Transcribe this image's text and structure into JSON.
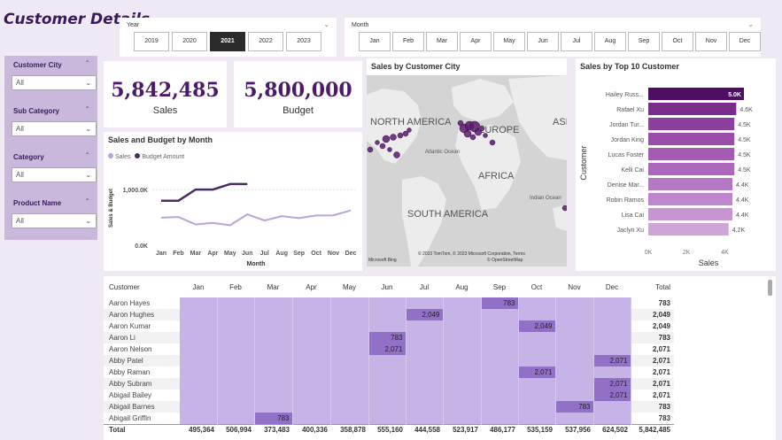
{
  "page": {
    "title": "Customer Details"
  },
  "year_slicer": {
    "label": "Year",
    "options": [
      "2019",
      "2020",
      "2021",
      "2022",
      "2023"
    ],
    "selected": "2021"
  },
  "month_slicer": {
    "label": "Month",
    "options": [
      "Jan",
      "Feb",
      "Mar",
      "Apr",
      "May",
      "Jun",
      "Jul",
      "Aug",
      "Sep",
      "Oct",
      "Nov",
      "Dec"
    ]
  },
  "filters": [
    {
      "label": "Customer City",
      "value": "All"
    },
    {
      "label": "Sub Category",
      "value": "All"
    },
    {
      "label": "Category",
      "value": "All"
    },
    {
      "label": "Product Name",
      "value": "All"
    }
  ],
  "kpis": {
    "sales": {
      "value": "5,842,485",
      "label": "Sales"
    },
    "budget": {
      "value": "5,800,000",
      "label": "Budget"
    }
  },
  "line_chart": {
    "title": "Sales and Budget by Month",
    "legend": [
      {
        "name": "Sales",
        "color": "#b9a3d9"
      },
      {
        "name": "Budget Amount",
        "color": "#4b2a6b"
      }
    ]
  },
  "map": {
    "title": "Sales by Customer City",
    "labels": [
      "NORTH AMERICA",
      "EUROPE",
      "AFRICA",
      "SOUTH AMERICA",
      "ASI",
      "Atlantic Ocean",
      "Indian Ocean"
    ],
    "attribution": "© 2023 TomTom, © 2023 Microsoft Corporation, Terms",
    "attribution2": "© OpenStreetMap",
    "logo": "Microsoft Bing"
  },
  "bar_chart": {
    "title": "Sales by Top 10 Customer"
  },
  "chart_data": [
    {
      "type": "line",
      "title": "Sales and Budget by Month",
      "xlabel": "Month",
      "ylabel": "Sales & Budget",
      "categories": [
        "Jan",
        "Feb",
        "Mar",
        "Apr",
        "May",
        "Jun",
        "Jul",
        "Aug",
        "Sep",
        "Oct",
        "Nov",
        "Dec"
      ],
      "yticks": [
        "0.0K",
        "1,000.0K"
      ],
      "ylim": [
        0,
        1400000
      ],
      "series": [
        {
          "name": "Sales",
          "color": "#b9a3d9",
          "values": [
            495364,
            506994,
            373483,
            400336,
            358878,
            555160,
            444558,
            523917,
            486177,
            535159,
            537956,
            624502
          ]
        },
        {
          "name": "Budget Amount",
          "color": "#4b2a6b",
          "values": [
            800000,
            800000,
            1000000,
            1000000,
            1100000,
            1100000,
            null,
            null,
            null,
            null,
            null,
            null
          ]
        }
      ]
    },
    {
      "type": "bar",
      "title": "Sales by Top 10 Customer",
      "xlabel": "Sales",
      "ylabel": "Customer",
      "categories": [
        "Hailey Russ...",
        "Rafael Xu",
        "Jordan Tur...",
        "Jordan King",
        "Lucas Foster",
        "Kelli Cai",
        "Denise Mar...",
        "Robin Ramos",
        "Lisa Cai",
        "Jaclyn Xu"
      ],
      "labels": [
        "5.0K",
        "4.6K",
        "4.5K",
        "4.5K",
        "4.5K",
        "4.5K",
        "4.4K",
        "4.4K",
        "4.4K",
        "4.2K"
      ],
      "values": [
        5000,
        4600,
        4500,
        4500,
        4500,
        4500,
        4400,
        4400,
        4400,
        4200
      ],
      "xticks": [
        "0K",
        "2K",
        "4K"
      ],
      "xlim": [
        0,
        5000
      ]
    },
    {
      "type": "table",
      "title": "Customer matrix",
      "columns": [
        "Customer",
        "Jan",
        "Feb",
        "Mar",
        "Apr",
        "May",
        "Jun",
        "Jul",
        "Aug",
        "Sep",
        "Oct",
        "Nov",
        "Dec",
        "Total"
      ],
      "rows": [
        {
          "name": "Aaron Hayes",
          "cells": [
            "",
            "",
            "",
            "",
            "",
            "",
            "",
            "",
            "783",
            "",
            "",
            ""
          ],
          "total": "783"
        },
        {
          "name": "Aaron Hughes",
          "cells": [
            "",
            "",
            "",
            "",
            "",
            "",
            "2,049",
            "",
            "",
            "",
            "",
            ""
          ],
          "total": "2,049"
        },
        {
          "name": "Aaron Kumar",
          "cells": [
            "",
            "",
            "",
            "",
            "",
            "",
            "",
            "",
            "",
            "2,049",
            "",
            ""
          ],
          "total": "2,049"
        },
        {
          "name": "Aaron Li",
          "cells": [
            "",
            "",
            "",
            "",
            "",
            "783",
            "",
            "",
            "",
            "",
            "",
            ""
          ],
          "total": "783"
        },
        {
          "name": "Aaron Nelson",
          "cells": [
            "",
            "",
            "",
            "",
            "",
            "2,071",
            "",
            "",
            "",
            "",
            "",
            ""
          ],
          "total": "2,071"
        },
        {
          "name": "Abby Patel",
          "cells": [
            "",
            "",
            "",
            "",
            "",
            "",
            "",
            "",
            "",
            "",
            "",
            "2,071"
          ],
          "total": "2,071"
        },
        {
          "name": "Abby Raman",
          "cells": [
            "",
            "",
            "",
            "",
            "",
            "",
            "",
            "",
            "",
            "2,071",
            "",
            ""
          ],
          "total": "2,071"
        },
        {
          "name": "Abby Subram",
          "cells": [
            "",
            "",
            "",
            "",
            "",
            "",
            "",
            "",
            "",
            "",
            "",
            "2,071"
          ],
          "total": "2,071"
        },
        {
          "name": "Abigail Bailey",
          "cells": [
            "",
            "",
            "",
            "",
            "",
            "",
            "",
            "",
            "",
            "",
            "",
            "2,071"
          ],
          "total": "2,071"
        },
        {
          "name": "Abigail Barnes",
          "cells": [
            "",
            "",
            "",
            "",
            "",
            "",
            "",
            "",
            "",
            "",
            "783",
            ""
          ],
          "total": "783"
        },
        {
          "name": "Abigail Griffin",
          "cells": [
            "",
            "",
            "783",
            "",
            "",
            "",
            "",
            "",
            "",
            "",
            "",
            ""
          ],
          "total": "783"
        }
      ],
      "totals": {
        "label": "Total",
        "cells": [
          "495,364",
          "506,994",
          "373,483",
          "400,336",
          "358,878",
          "555,160",
          "444,558",
          "523,917",
          "486,177",
          "535,159",
          "537,956",
          "624,502"
        ],
        "total": "5,842,485"
      }
    }
  ]
}
